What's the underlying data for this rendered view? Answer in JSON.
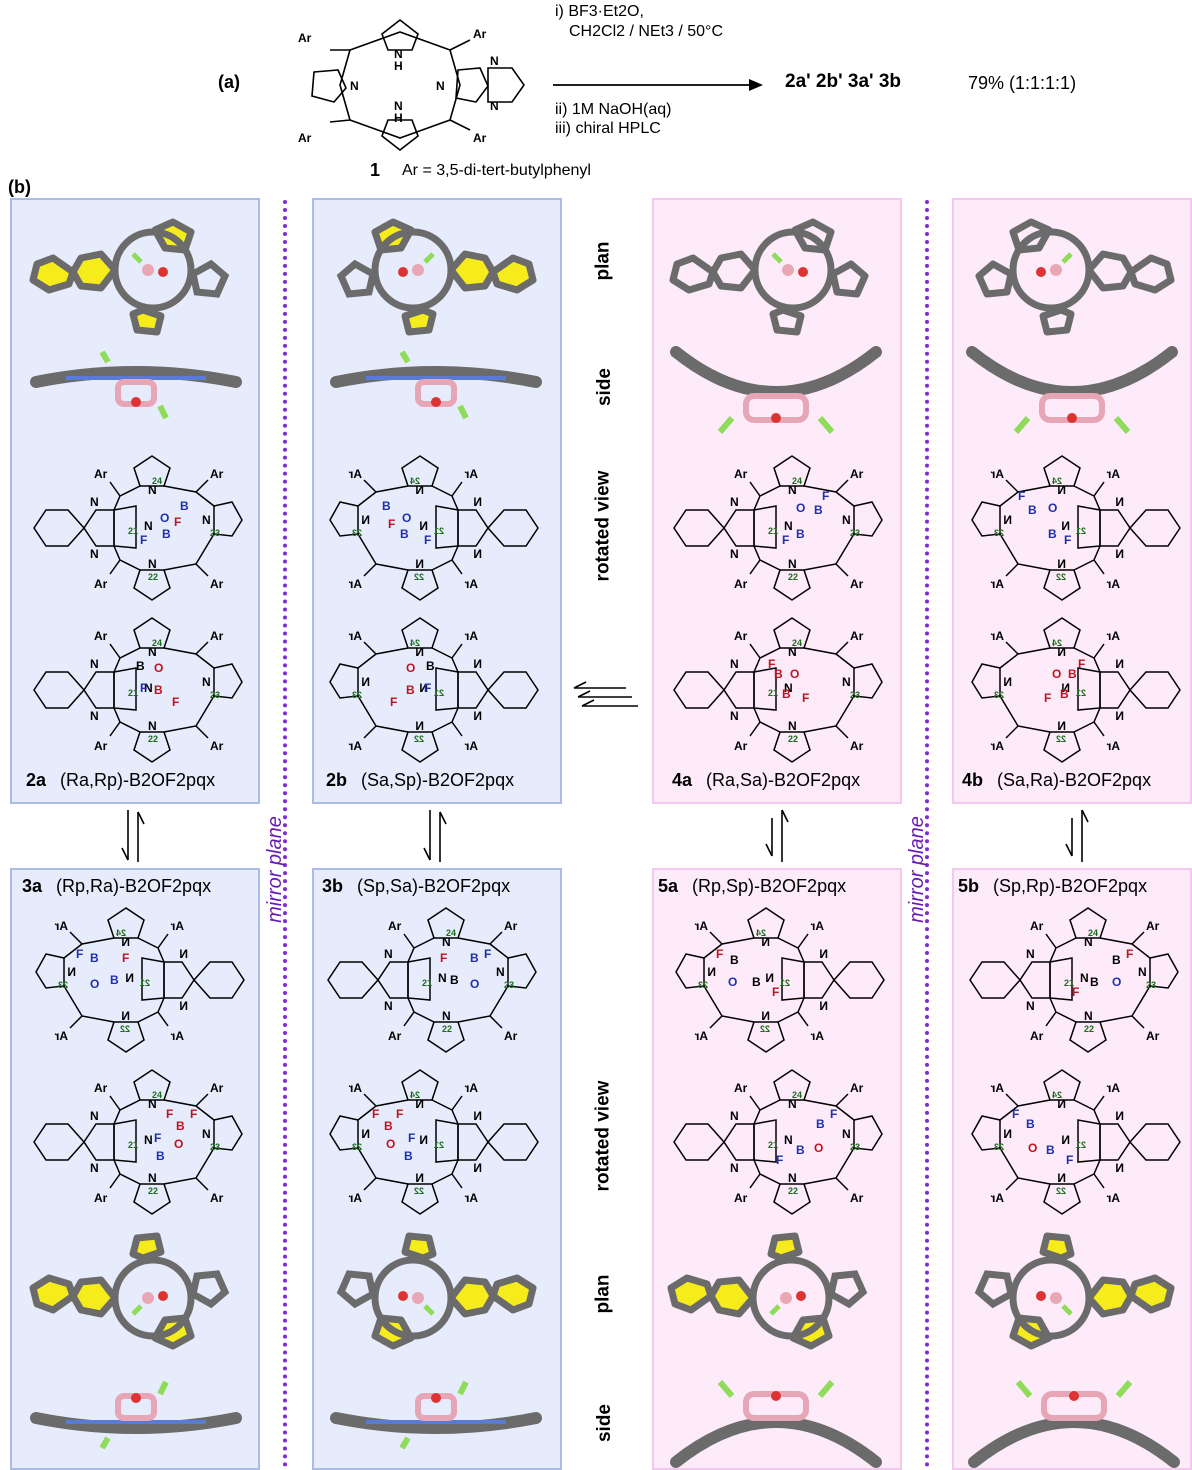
{
  "part_a": {
    "label": "(a)",
    "compound_number": "1",
    "ar_definition": "Ar = 3,5-di-tert-butylphenyl",
    "conditions": [
      "i) BF3·Et2O,",
      "CH2Cl2 / NEt3 / 50°C",
      "ii) 1M NaOH(aq)",
      "iii) chiral HPLC"
    ],
    "products": "2a' 2b' 3a' 3b",
    "yield": "79% (1:1:1:1)"
  },
  "part_b": {
    "label": "(b)",
    "row_labels": [
      "plan",
      "side",
      "rotated view",
      "rotated view",
      "plan",
      "side"
    ],
    "mirror_label": "mirror plane",
    "captions": {
      "c2a_num": "2a",
      "c2a": "(Ra,Rp)-B2OF2pqx",
      "c2b_num": "2b",
      "c2b": "(Sa,Sp)-B2OF2pqx",
      "c3a_num": "3a",
      "c3a": "(Rp,Ra)-B2OF2pqx",
      "c3b_num": "3b",
      "c3b": "(Sp,Sa)-B2OF2pqx",
      "c4a_num": "4a",
      "c4a": "(Ra,Sa)-B2OF2pqx",
      "c4b_num": "4b",
      "c4b": "(Sa,Ra)-B2OF2pqx",
      "c5a_num": "5a",
      "c5a": "(Rp,Sp)-B2OF2pqx",
      "c5b_num": "5b",
      "c5b": "(Sp,Rp)-B2OF2pqx"
    }
  },
  "colors": {
    "blue_panel": "#e6ecfb",
    "pink_panel": "#fdebf9",
    "mirror": "#7b2ed8",
    "boron_blue": "#1f2fb0",
    "boron_red": "#c0131f",
    "nitrogen_green": "#1c6b1c"
  }
}
